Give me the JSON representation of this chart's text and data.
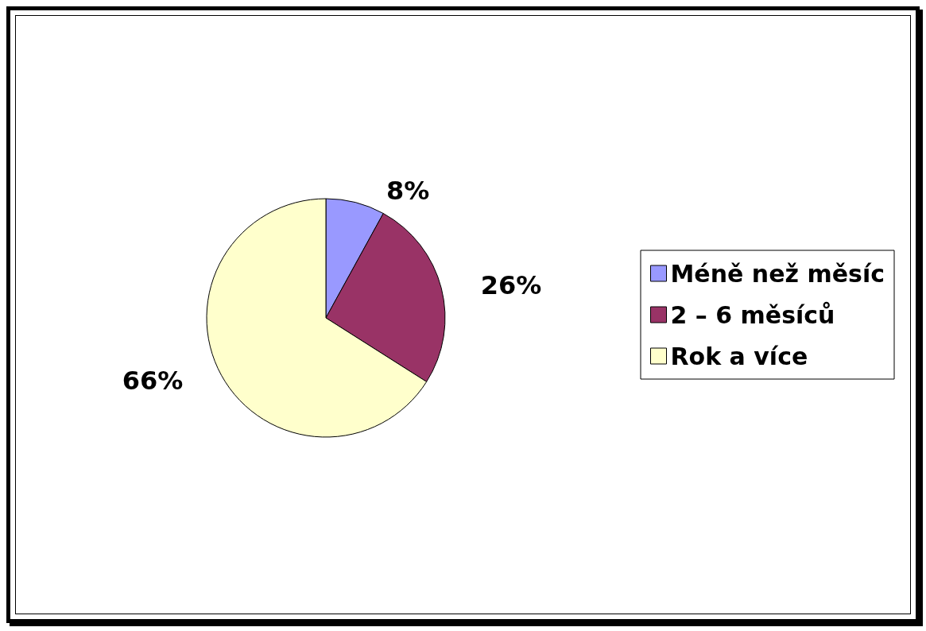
{
  "chart_data": {
    "type": "pie",
    "categories": [
      "Méně než měsíc",
      "2 – 6 měsíců",
      "Rok a více"
    ],
    "values": [
      8,
      26,
      66
    ],
    "colors": [
      "#9999ff",
      "#993366",
      "#ffffcc"
    ],
    "value_labels": [
      "8%",
      "26%",
      "66%"
    ],
    "legend": "right"
  }
}
